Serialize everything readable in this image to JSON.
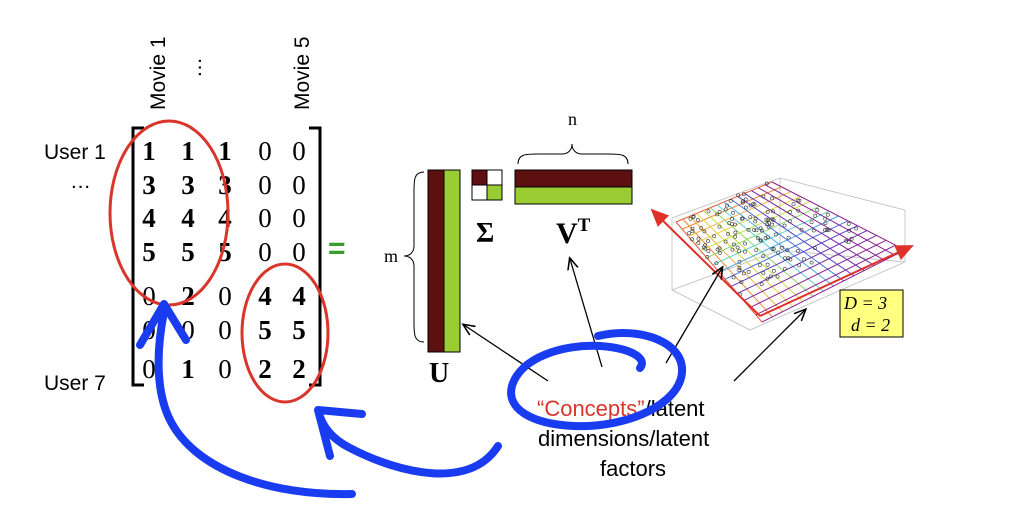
{
  "row_labels": {
    "first": "User 1",
    "ellipsis": "…",
    "last": "User 7"
  },
  "col_labels": {
    "first": "Movie 1",
    "ellipsis": "…",
    "last": "Movie 5"
  },
  "matrix": [
    [
      1,
      1,
      1,
      0,
      0
    ],
    [
      3,
      3,
      3,
      0,
      0
    ],
    [
      4,
      4,
      4,
      0,
      0
    ],
    [
      5,
      5,
      5,
      0,
      0
    ],
    [
      0,
      2,
      0,
      4,
      4
    ],
    [
      0,
      0,
      0,
      5,
      5
    ],
    [
      0,
      1,
      0,
      2,
      2
    ]
  ],
  "equals": "=",
  "svd": {
    "m_label": "m",
    "n_label": "n",
    "u_label": "U",
    "sigma_label": "Σ",
    "vt_label": "V",
    "vt_sup": "T"
  },
  "plot": {
    "big_d": "D = 3",
    "small_d": "d = 2"
  },
  "caption": {
    "concepts": "“Concepts”",
    "line1_rest": "/latent",
    "line2": "dimensions/latent",
    "line3": "factors"
  },
  "colors": {
    "dark_red": "#5c1010",
    "green": "#9acd32",
    "circle_red": "#d9352a",
    "ink_blue": "#1a3cf0",
    "plot_red": "#e0302a",
    "legend_bg": "#ffff80",
    "equals_green": "#3a9a2a"
  }
}
